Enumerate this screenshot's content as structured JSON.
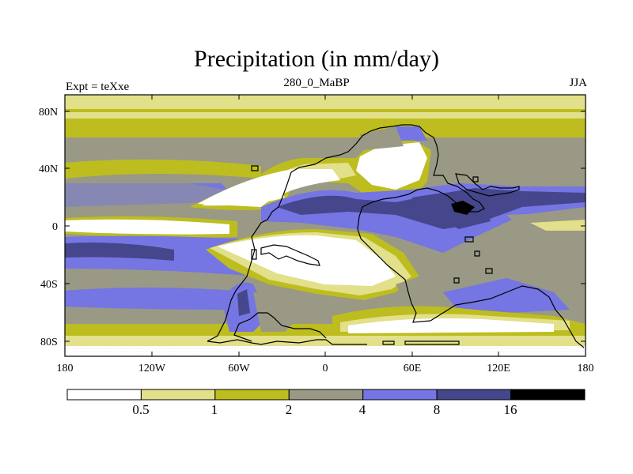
{
  "title": "Precipitation (in mm/day)",
  "subtitle_left": "Expt = teXxe",
  "subtitle_center": "280_0_MaBP",
  "subtitle_right": "JJA",
  "axes": {
    "lat_ticks": [
      "80N",
      "40N",
      "0",
      "40S",
      "80S"
    ],
    "lon_ticks": [
      "180",
      "120W",
      "60W",
      "0",
      "60E",
      "120E",
      "180"
    ]
  },
  "colorbar": {
    "labels": [
      "0.5",
      "1",
      "2",
      "4",
      "8",
      "16"
    ],
    "colors": [
      "#ffffff",
      "#e2e08a",
      "#bdbd1f",
      "#999985",
      "#7575e3",
      "#46468c",
      "#000000"
    ]
  }
}
